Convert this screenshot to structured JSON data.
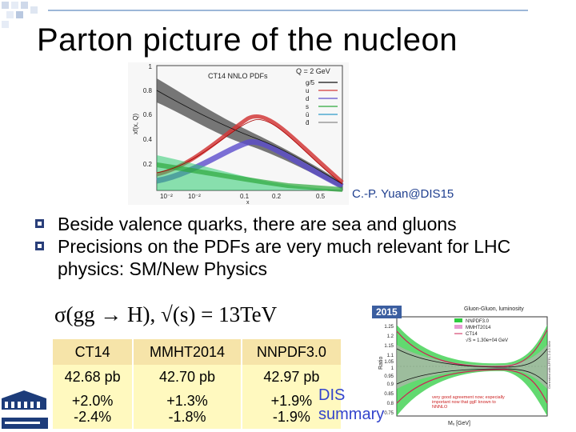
{
  "slide": {
    "title": "Parton picture of the nucleon",
    "credit": "C.-P. Yuan@DIS15",
    "bullets": [
      "Beside valence quarks, there are sea and gluons",
      "Precisions on the PDFs are very much relevant for LHC physics: SM/New Physics"
    ],
    "formula": "σ(gg → H), √(s) = 13TeV",
    "links": [
      "DIS",
      "summary"
    ],
    "accent_color": "#2a3f7a",
    "link_color": "#3344cc"
  },
  "pdf_plot": {
    "title": "CT14 NNLO PDFs",
    "scale": "Q = 2 GeV",
    "ylabel": "xf(x, Q)",
    "xlabel": "x",
    "yticks": [
      "0.2",
      "0.4",
      "0.6",
      "0.8",
      "1"
    ],
    "xticks": [
      "10⁻²",
      "10⁻²",
      "0.1",
      "0.2",
      "0.5"
    ],
    "legend": [
      "g/5",
      "u",
      "d",
      "s",
      "ū",
      "d̄"
    ]
  },
  "xs_table": {
    "headers": [
      "CT14",
      "MMHT2014",
      "NNPDF3.0"
    ],
    "values": [
      "42.68 pb",
      "42.70 pb",
      "42.97 pb"
    ],
    "uncert_up": [
      "+2.0%",
      "+1.3%",
      "+1.9%"
    ],
    "uncert_down": [
      "-2.4%",
      "-1.8%",
      "-1.9%"
    ]
  },
  "lumi_plot": {
    "year": "2015",
    "title": "Gluon-Gluon, luminosity",
    "legend": [
      "NNPDF3.0",
      "MMHT2014",
      "CT14",
      "√S = 1.30e+04 GeV"
    ],
    "ylabel": "Ratio",
    "xlabel": "Mₓ [GeV]",
    "yticks": [
      "1.25",
      "1.2",
      "1.15",
      "1.1",
      "1.05",
      "1",
      "0.95",
      "0.9",
      "0.85",
      "0.8",
      "0.75"
    ],
    "note": "very good agreement now; especially important now that ggF known to NNNLO",
    "side_note": "Generated with APFEL 2.4.0 Web"
  }
}
